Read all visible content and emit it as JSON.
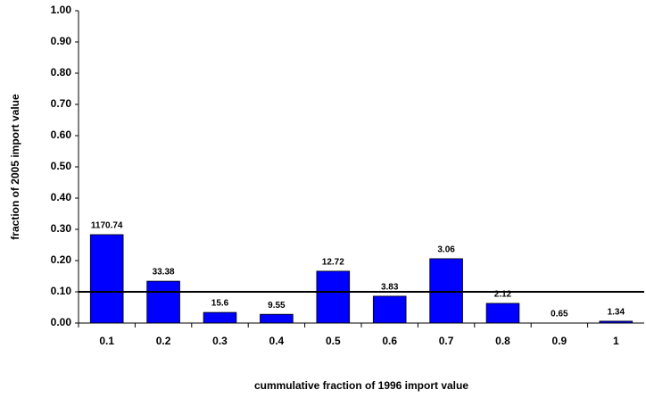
{
  "chart_data": {
    "type": "bar",
    "x_label": "cummulative fraction of 1996 import value",
    "y_label": "fraction of 2005 import value",
    "categories": [
      "0.1",
      "0.2",
      "0.3",
      "0.4",
      "0.5",
      "0.6",
      "0.7",
      "0.8",
      "0.9",
      "1"
    ],
    "values": [
      0.283,
      0.134,
      0.034,
      0.028,
      0.166,
      0.086,
      0.206,
      0.063,
      0,
      0.006
    ],
    "bar_annotations": [
      1170.74,
      33.38,
      15.6,
      9.55,
      12.72,
      3.83,
      3.06,
      2.12,
      0.65,
      1.34
    ],
    "color": "#0000ff",
    "reference_line": 0.1,
    "ylim": [
      0,
      1
    ],
    "yticks": [
      {
        "value": 0,
        "label": "0.00"
      },
      {
        "value": 0.1,
        "label": "0.10"
      },
      {
        "value": 0.2,
        "label": "0.20"
      },
      {
        "value": 0.3,
        "label": "0.30"
      },
      {
        "value": 0.4,
        "label": "0.40"
      },
      {
        "value": 0.5,
        "label": "0.50"
      },
      {
        "value": 0.6,
        "label": "0.60"
      },
      {
        "value": 0.7,
        "label": "0.70"
      },
      {
        "value": 0.8,
        "label": "0.80"
      },
      {
        "value": 0.9,
        "label": "0.90"
      },
      {
        "value": 1,
        "label": "1.00"
      }
    ],
    "grid": false
  }
}
